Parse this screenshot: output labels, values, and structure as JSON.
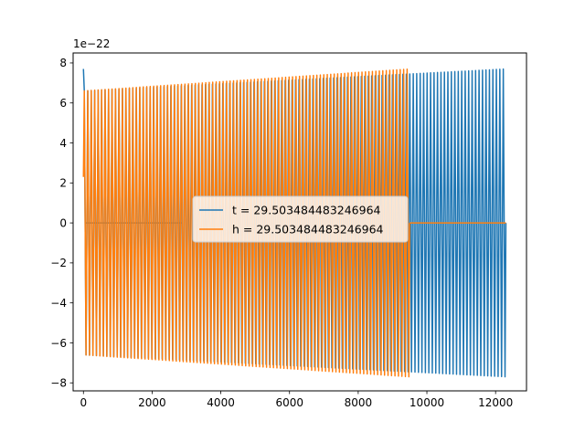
{
  "chart_data": {
    "type": "line",
    "title": "",
    "xlabel": "",
    "ylabel": "",
    "offset_label": "1e−22",
    "xlim": [
      -300,
      12900
    ],
    "ylim": [
      -8.4,
      8.5
    ],
    "x_ticks": [
      0,
      2000,
      4000,
      6000,
      8000,
      10000,
      12000
    ],
    "y_ticks": [
      -8,
      -6,
      -4,
      -2,
      0,
      2,
      4,
      6,
      8
    ],
    "tick_labels_y": [
      "−8",
      "−6",
      "−4",
      "−2",
      "0",
      "2",
      "4",
      "6",
      "8"
    ],
    "grid": false,
    "legend_position": "center",
    "series": [
      {
        "name": "t = 29.503484483246964",
        "color": "#1f77b4",
        "oscillation": {
          "x_start": 0,
          "x_end": 12300,
          "peak_start": 6.6,
          "peak_end": 7.7,
          "initial_value": 7.7,
          "cycles": 122,
          "flat_zero_ranges": [
            [
              40,
              2850
            ]
          ]
        }
      },
      {
        "name": "h = 29.503484483246964",
        "color": "#ff7f0e",
        "oscillation": {
          "x_start": 0,
          "x_end": 9500,
          "peak_start": 6.6,
          "peak_end": 7.7,
          "initial_value": 2.3,
          "cycles": 94,
          "flat_zero_ranges": [
            [
              9500,
              12300
            ]
          ]
        }
      }
    ]
  }
}
